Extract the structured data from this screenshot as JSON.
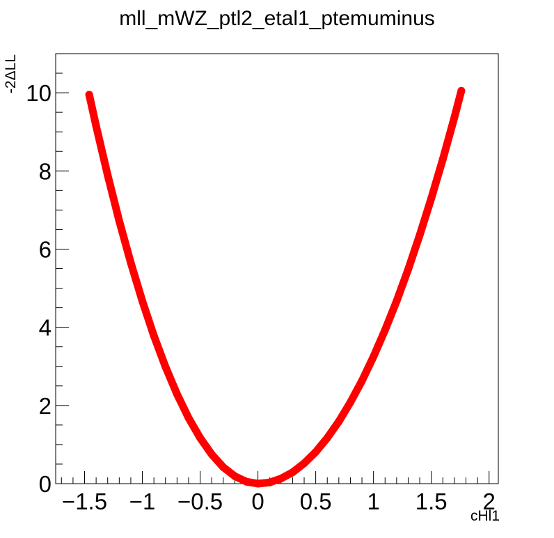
{
  "chart_data": {
    "type": "scatter",
    "title": "mll_mWZ_ptl2_etal1_ptemuminus",
    "xlabel": "cHl1",
    "ylabel": "-2ΔLL",
    "xlim": [
      -1.75,
      2.08
    ],
    "ylim": [
      0,
      11
    ],
    "x_ticks": [
      -1.5,
      -1,
      -0.5,
      0,
      0.5,
      1,
      1.5,
      2
    ],
    "x_tick_labels": [
      "−1.5",
      "−1",
      "−0.5",
      "0",
      "0.5",
      "1",
      "1.5",
      "2"
    ],
    "y_ticks": [
      0,
      2,
      4,
      6,
      8,
      10
    ],
    "y_tick_labels": [
      "0",
      "2",
      "4",
      "6",
      "8",
      "10"
    ],
    "grid": false,
    "legend": "none",
    "series": [
      {
        "color": "#ff0000",
        "x": [
          -1.46,
          -1.4,
          -1.3,
          -1.2,
          -1.1,
          -1.0,
          -0.9,
          -0.8,
          -0.7,
          -0.6,
          -0.5,
          -0.4,
          -0.3,
          -0.2,
          -0.1,
          0.0,
          0.1,
          0.2,
          0.3,
          0.4,
          0.5,
          0.6,
          0.7,
          0.8,
          0.9,
          1.0,
          1.1,
          1.2,
          1.3,
          1.4,
          1.5,
          1.6,
          1.7,
          1.76
        ],
        "y": [
          9.95,
          9.15,
          7.89,
          6.72,
          5.65,
          4.67,
          3.78,
          2.99,
          2.29,
          1.68,
          1.17,
          0.75,
          0.42,
          0.19,
          0.05,
          0.0,
          0.03,
          0.13,
          0.29,
          0.52,
          0.81,
          1.17,
          1.59,
          2.08,
          2.63,
          3.25,
          3.93,
          4.67,
          5.48,
          6.36,
          7.3,
          8.3,
          9.37,
          10.05
        ]
      }
    ]
  }
}
